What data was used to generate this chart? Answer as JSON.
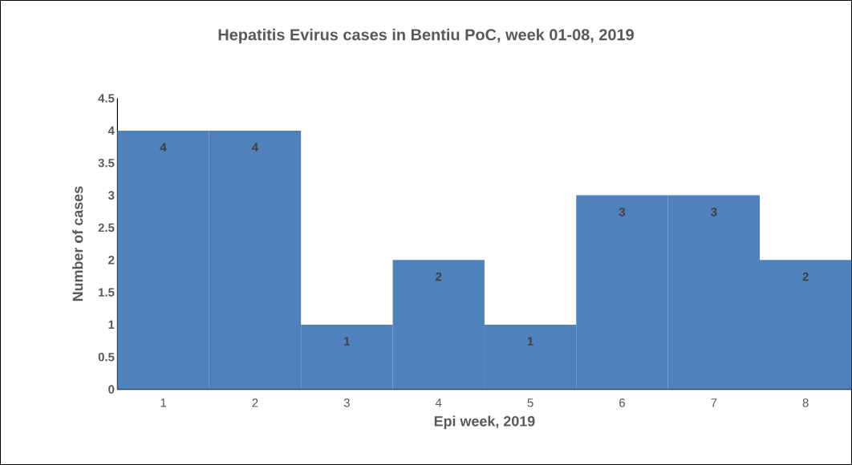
{
  "chart_data": {
    "type": "bar",
    "title": "Hepatitis Evirus cases in Bentiu PoC, week 01-08, 2019",
    "xlabel": "Epi week, 2019",
    "ylabel": "Number of cases",
    "categories": [
      "1",
      "2",
      "3",
      "4",
      "5",
      "6",
      "7",
      "8"
    ],
    "values": [
      4,
      4,
      1,
      2,
      1,
      3,
      3,
      2
    ],
    "color": "#4f81bd",
    "ylim": [
      0,
      4.5
    ],
    "yticks": [
      0,
      0.5,
      1,
      1.5,
      2,
      2.5,
      3,
      3.5,
      4,
      4.5
    ],
    "grid": false,
    "data_labels": true
  }
}
